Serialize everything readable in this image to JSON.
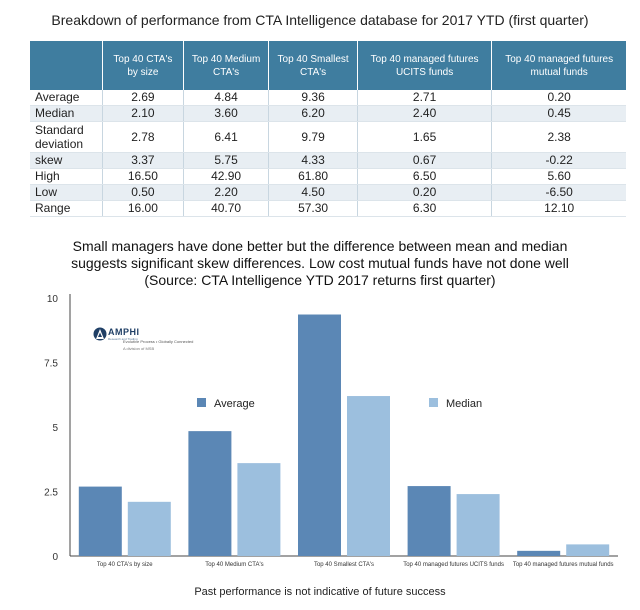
{
  "table_title": "Breakdown of performance from CTA Intelligence database for 2017 YTD (first quarter)",
  "table": {
    "columns": [
      "",
      "Top 40 CTA's by size",
      "Top 40 Medium CTA's",
      "Top 40 Smallest CTA's",
      "Top 40 managed futures UCITS funds",
      "Top 40  managed futures mutual funds"
    ],
    "rows": [
      {
        "label": "Average",
        "values": [
          "2.69",
          "4.84",
          "9.36",
          "2.71",
          "0.20"
        ]
      },
      {
        "label": "Median",
        "values": [
          "2.10",
          "3.60",
          "6.20",
          "2.40",
          "0.45"
        ]
      },
      {
        "label": "Standard deviation",
        "values": [
          "2.78",
          "6.41",
          "9.79",
          "1.65",
          "2.38"
        ]
      },
      {
        "label": "skew",
        "values": [
          "3.37",
          "5.75",
          "4.33",
          "0.67",
          "-0.22"
        ]
      },
      {
        "label": "High",
        "values": [
          "16.50",
          "42.90",
          "61.80",
          "6.50",
          "5.60"
        ]
      },
      {
        "label": "Low",
        "values": [
          "0.50",
          "2.20",
          "4.50",
          "0.20",
          "-6.50"
        ]
      },
      {
        "label": "Range",
        "values": [
          "16.00",
          "40.70",
          "57.30",
          "6.30",
          "12.10"
        ]
      }
    ]
  },
  "chart_data": {
    "type": "bar",
    "title": "Small managers have done better but the difference between mean and median suggests significant skew differences. Low cost mutual funds have not done well (Source: CTA Intelligence YTD 2017 returns first quarter)",
    "title_lines": [
      "Small managers have done better but the difference between mean and median",
      "suggests significant skew differences. Low cost mutual funds have not done well",
      "(Source: CTA Intelligence YTD 2017 returns first quarter)"
    ],
    "categories": [
      "Top 40 CTA's by size",
      "Top 40 Medium CTA's",
      "Top 40 Smallest CTA's",
      "Top 40 managed futures UCITS funds",
      "Top 40  managed futures mutual funds"
    ],
    "series": [
      {
        "name": "Average",
        "values": [
          2.69,
          4.84,
          9.36,
          2.71,
          0.2
        ],
        "color": "#5b87b5"
      },
      {
        "name": "Median",
        "values": [
          2.1,
          3.6,
          6.2,
          2.4,
          0.45
        ],
        "color": "#9cbfde"
      }
    ],
    "yticks": [
      "0",
      "2.5",
      "5",
      "7.5",
      "10"
    ],
    "ytick_values": [
      0,
      2.5,
      5,
      7.5,
      10
    ],
    "ylim": [
      0,
      10
    ],
    "xlabel": "",
    "ylabel": "",
    "legend_position": "center"
  },
  "logo": {
    "name": "AMPHI",
    "subtitle": "Research and Trading",
    "tagline": "Evolutive Process • Globally Connected",
    "division": "A division of MSB"
  },
  "footer": "Past performance is not indicative of future success"
}
